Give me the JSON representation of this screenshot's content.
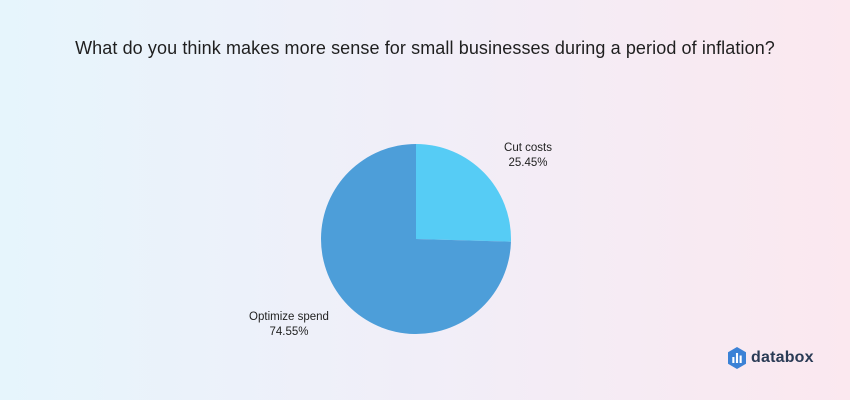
{
  "chart_data": {
    "type": "pie",
    "title": "What do you think makes more sense for small businesses during a period of inflation?",
    "slices": [
      {
        "label": "Cut costs",
        "value": 25.45,
        "value_text": "25.45%",
        "color": "#56ccf5"
      },
      {
        "label": "Optimize spend",
        "value": 74.55,
        "value_text": "74.55%",
        "color": "#4d9ed9"
      }
    ]
  },
  "brand": {
    "name": "databox",
    "icon": "databox-logo-icon",
    "color": "#2a3b55",
    "icon_color": "#3b82d6"
  }
}
